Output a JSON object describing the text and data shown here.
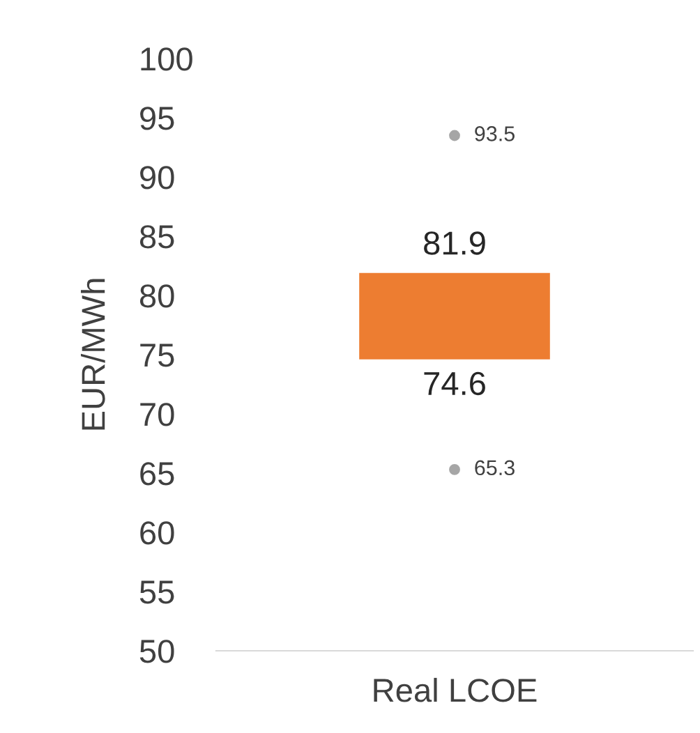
{
  "chart_data": {
    "type": "bar",
    "ylabel": "EUR/MWh",
    "categories": [
      "Real LCOE"
    ],
    "series": [
      {
        "type": "bar",
        "color": "#ed7d31",
        "values": [
          7.3
        ],
        "base": [
          74.6
        ]
      },
      {
        "type": "scatter",
        "color": "#a6a6a6",
        "x": [
          "Real LCOE",
          "Real LCOE"
        ],
        "values": [
          93.5,
          65.3
        ],
        "value_labels": [
          "93.5",
          "65.3"
        ]
      }
    ],
    "annotations": [
      {
        "text": "81.9",
        "x": "Real LCOE",
        "y": 81.9
      },
      {
        "text": "74.6",
        "x": "Real LCOE",
        "y": 74.6
      }
    ],
    "ylim": [
      50,
      100
    ],
    "yticks": [
      50,
      55,
      60,
      65,
      70,
      75,
      80,
      85,
      90,
      95,
      100
    ],
    "grid": false,
    "legend": false
  }
}
